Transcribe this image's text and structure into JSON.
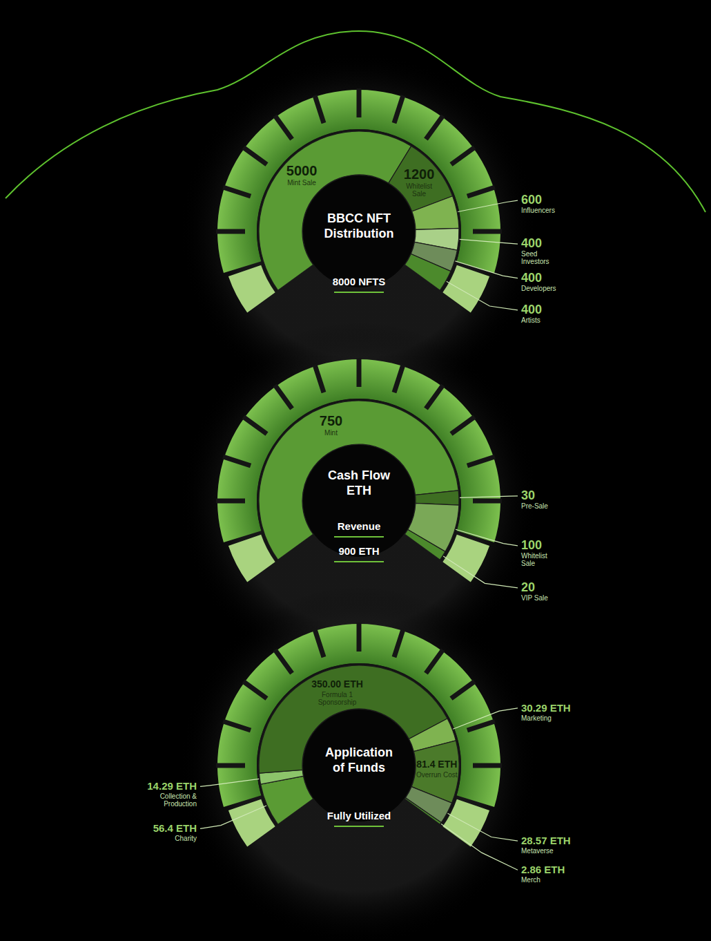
{
  "chart_data": [
    {
      "type": "gauge",
      "title": "BBCC NFT Distribution",
      "categories": [
        "Mint Sale",
        "Whitelist Sale",
        "Influencers",
        "Seed Investors",
        "Developers",
        "Artists"
      ],
      "values": [
        5000,
        1200,
        600,
        400,
        400,
        400
      ],
      "colors": [
        "#5a9b34",
        "#3e6e22",
        "#7fb350",
        "#a9d088",
        "#6e8c5a",
        "#4c8a2c"
      ],
      "data_labels": true,
      "annotations": [
        "8000 NFTS"
      ]
    },
    {
      "type": "gauge",
      "title": "Cash Flow ETH",
      "categories": [
        "Mint",
        "Pre-Sale",
        "Whitelist Sale",
        "VIP Sale"
      ],
      "values": [
        750,
        30,
        100,
        20
      ],
      "colors": [
        "#5a9b34",
        "#3e6e22",
        "#7aa857",
        "#4c8a2c"
      ],
      "data_labels": true,
      "annotations": [
        "Revenue",
        "900 ETH"
      ]
    },
    {
      "type": "gauge",
      "title": "Application of Funds",
      "categories": [
        "Charity",
        "Collection & Production",
        "Formula 1 Sponsorship",
        "Marketing",
        "Overrun Cost",
        "Metaverse",
        "Merch"
      ],
      "values": [
        56.4,
        14.29,
        350,
        30.29,
        81.4,
        28.57,
        2.86
      ],
      "value_labels": [
        "56.4 ETH",
        "14.29 ETH",
        "350.00 ETH",
        "30.29 ETH",
        "81.4 ETH",
        "28.57 ETH",
        "2.86 ETH"
      ],
      "colors": [
        "#5a9b34",
        "#8cc46a",
        "#3e6e22",
        "#7fb350",
        "#4b7a2a",
        "#6e8c5a",
        "#4c8a2c"
      ],
      "data_labels": true,
      "annotations": [
        "Fully Utilized"
      ]
    }
  ]
}
